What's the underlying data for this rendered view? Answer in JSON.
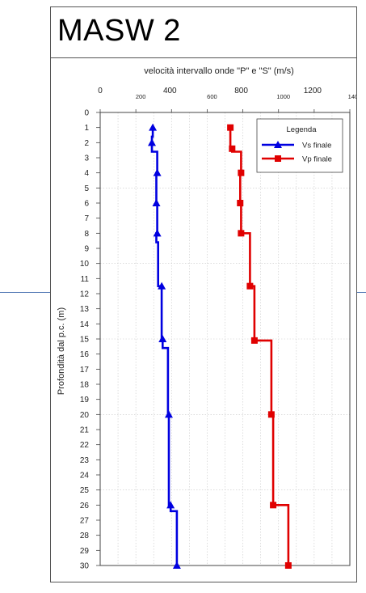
{
  "page_title": "MASW 2",
  "chart_data": {
    "type": "line",
    "title": "velocità intervallo onde \"P\" e \"S\" (m/s)",
    "ylabel": "Profondità dal p.c. (m)",
    "xlim": [
      0,
      1400
    ],
    "ylim": [
      0,
      30
    ],
    "y_inverted": true,
    "x_ticks_row1": [
      "0",
      "400",
      "800",
      "1200"
    ],
    "x_ticks_row2": [
      "200",
      "600",
      "1000",
      "1400"
    ],
    "y_ticks": [
      "0",
      "1",
      "2",
      "3",
      "4",
      "5",
      "6",
      "7",
      "8",
      "9",
      "10",
      "11",
      "12",
      "13",
      "14",
      "15",
      "16",
      "17",
      "18",
      "19",
      "20",
      "21",
      "22",
      "23",
      "24",
      "25",
      "26",
      "27",
      "28",
      "29",
      "30"
    ],
    "grid": true,
    "legend": {
      "title": "Legenda",
      "placement": "top-right"
    },
    "series": [
      {
        "name": "Vs finale",
        "color": "#0000e0",
        "marker": "triangle",
        "x": [
          295,
          295,
          290,
          290,
          320,
          320,
          315,
          315,
          320,
          320,
          315,
          315,
          325,
          325,
          345,
          345,
          350,
          350,
          380,
          380,
          385,
          385,
          395,
          395,
          430,
          430
        ],
        "y": [
          1,
          1.6,
          1.6,
          2.6,
          2.6,
          4,
          4,
          6,
          6,
          8,
          8,
          8.6,
          8.6,
          11.5,
          11.5,
          15,
          15,
          15.6,
          15.6,
          20,
          20,
          26,
          26,
          26.4,
          26.4,
          30
        ],
        "markers_x": [
          295,
          290,
          320,
          315,
          320,
          345,
          350,
          385,
          395,
          430
        ],
        "markers_y": [
          1,
          2,
          4,
          6,
          8,
          11.5,
          15,
          20,
          26,
          30
        ]
      },
      {
        "name": "Vp finale",
        "color": "#e00000",
        "marker": "square",
        "x": [
          730,
          730,
          740,
          740,
          790,
          790,
          785,
          785,
          790,
          790,
          840,
          840,
          865,
          865,
          960,
          960,
          970,
          970,
          1055,
          1055
        ],
        "y": [
          1,
          2.4,
          2.4,
          2.6,
          2.6,
          4,
          4,
          6,
          6,
          8,
          8,
          11.5,
          11.5,
          15.1,
          15.1,
          20,
          20,
          26,
          26,
          30
        ],
        "markers_x": [
          730,
          740,
          790,
          785,
          790,
          840,
          865,
          960,
          970,
          1055
        ],
        "markers_y": [
          1,
          2.4,
          4,
          6,
          8,
          11.5,
          15.1,
          20,
          26,
          30
        ]
      }
    ]
  }
}
